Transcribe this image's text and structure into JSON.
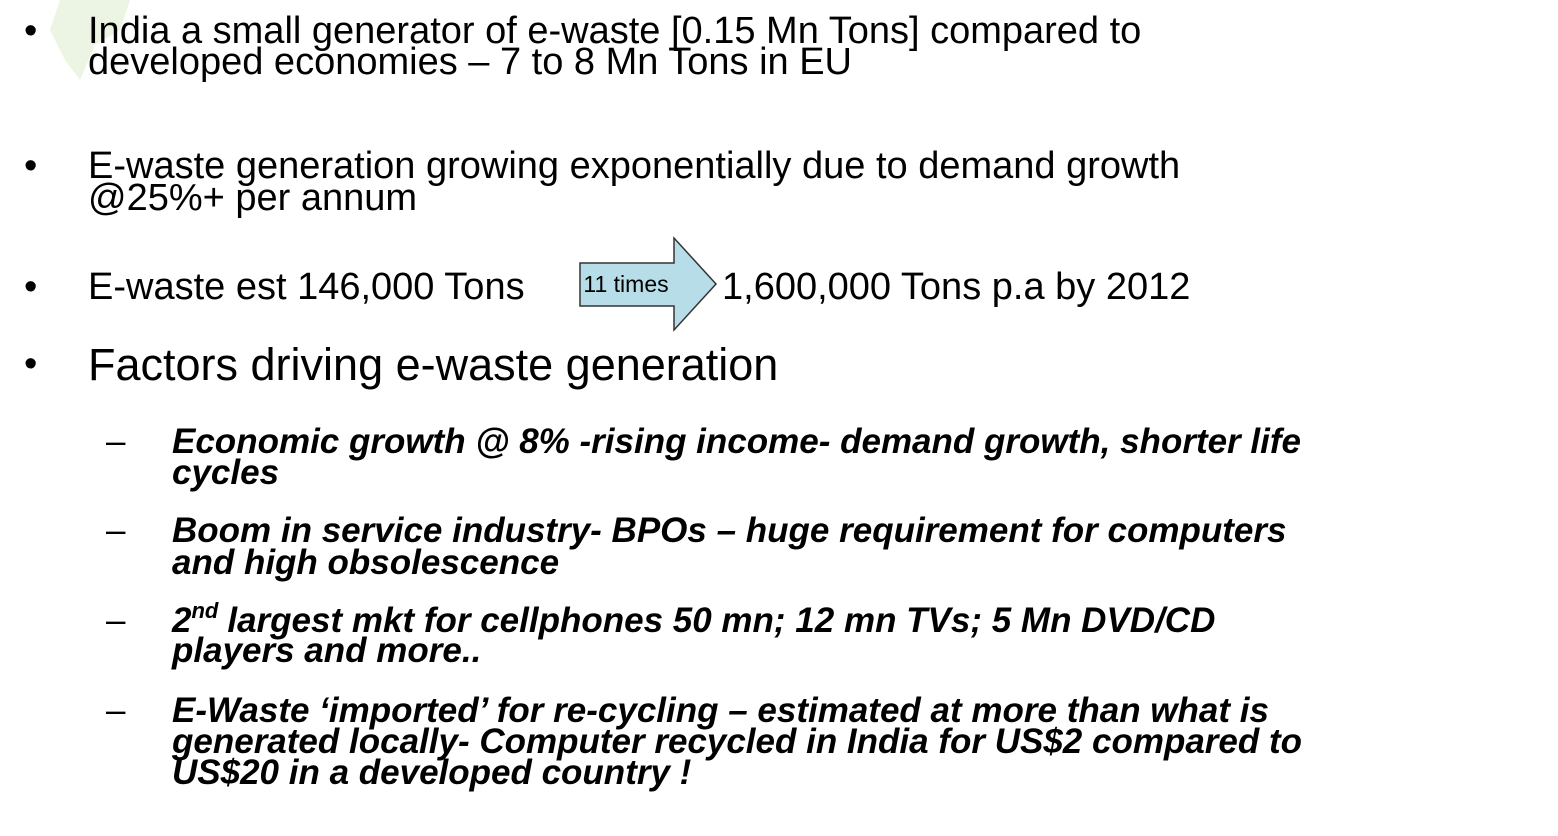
{
  "bullets": [
    {
      "lines": [
        "India a small generator of e-waste [0.15 Mn Tons] compared to",
        "developed economies – 7 to 8 Mn Tons in EU"
      ]
    },
    {
      "lines": [
        "E-waste generation growing exponentially due to demand growth",
        "@25%+ per annum"
      ]
    },
    {
      "text_before": "E-waste est 146,000 Tons",
      "arrow_label": "11 times",
      "text_after": "1,600,000 Tons p.a by 2012"
    },
    {
      "text": "Factors driving e-waste generation",
      "sub_bullets": [
        {
          "lines": [
            "Economic growth @ 8% -rising income- demand growth, shorter life",
            "cycles"
          ]
        },
        {
          "lines": [
            "Boom in service industry- BPOs – huge requirement for computers",
            "and high obsolescence"
          ]
        },
        {
          "first_line": {
            "ordinal": "2",
            "suffix": "nd",
            "rest": "largest mkt for cellphones 50 mn; 12 mn TVs; 5 Mn DVD/CD"
          },
          "lines": [
            "players and more.."
          ]
        },
        {
          "lines": [
            "E-Waste ‘imported’ for re-cycling – estimated at more than what is",
            "generated locally- Computer recycled in India for US$2 compared to",
            "US$20 in a developed country !"
          ]
        }
      ]
    }
  ]
}
